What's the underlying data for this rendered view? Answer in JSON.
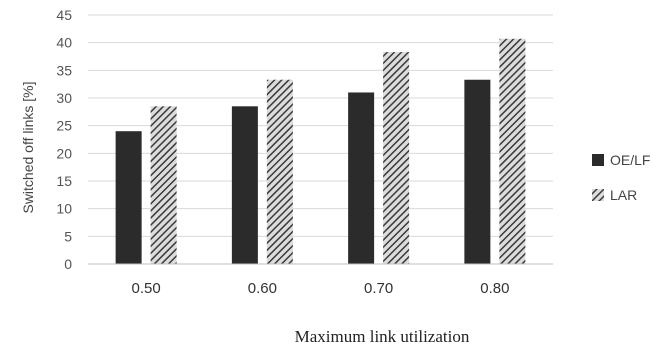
{
  "chart_data": {
    "type": "bar",
    "categories": [
      "0.50",
      "0.60",
      "0.70",
      "0.80"
    ],
    "series": [
      {
        "name": "OE/LF",
        "values": [
          24.0,
          28.5,
          31.0,
          33.3
        ],
        "color": "#2b2b2b",
        "pattern": "solid"
      },
      {
        "name": "LAR",
        "values": [
          28.5,
          33.3,
          38.3,
          40.7
        ],
        "color": "#4a4a4a",
        "pattern": "diagonal-hatch"
      }
    ],
    "ylabel": "Switched off links [%]",
    "xlabel": "Maximum link utilization",
    "ylim": [
      0,
      45
    ],
    "yticks": [
      0,
      5,
      10,
      15,
      20,
      25,
      30,
      35,
      40,
      45
    ],
    "grid": true,
    "legend_position": "right"
  }
}
